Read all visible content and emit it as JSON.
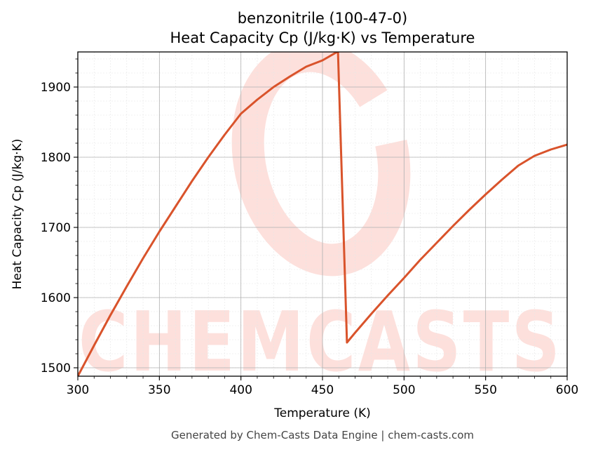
{
  "chart_data": {
    "type": "line",
    "title": "benzonitrile (100-47-0)",
    "subtitle": "Heat Capacity Cp (J/kg·K) vs Temperature",
    "xlabel": "Temperature (K)",
    "ylabel": "Heat Capacity Cp (J/kg·K)",
    "xlim": [
      300,
      600
    ],
    "ylim": [
      1488,
      1950
    ],
    "xticks": [
      300,
      350,
      400,
      450,
      500,
      550,
      600
    ],
    "yticks": [
      1500,
      1600,
      1700,
      1800,
      1900
    ],
    "grid": true,
    "line_color": "#d9532b",
    "series": [
      {
        "x": [
          300,
          310,
          320,
          330,
          340,
          350,
          360,
          370,
          380,
          390,
          400,
          410,
          420,
          430,
          440,
          450,
          459,
          459.5,
          465,
          470,
          480,
          490,
          500,
          510,
          520,
          530,
          540,
          550,
          560,
          570,
          580,
          590,
          600
        ],
        "values": [
          1488,
          1532,
          1575,
          1616,
          1656,
          1694,
          1730,
          1766,
          1800,
          1832,
          1862,
          1882,
          1900,
          1915,
          1929,
          1938,
          1950,
          1950,
          1536,
          1550,
          1577,
          1603,
          1628,
          1654,
          1678,
          1702,
          1725,
          1747,
          1768,
          1788,
          1802,
          1811,
          1818
        ]
      }
    ]
  },
  "watermark": "CHEMCASTS",
  "footer": "Generated by Chem-Casts Data Engine | chem-casts.com"
}
